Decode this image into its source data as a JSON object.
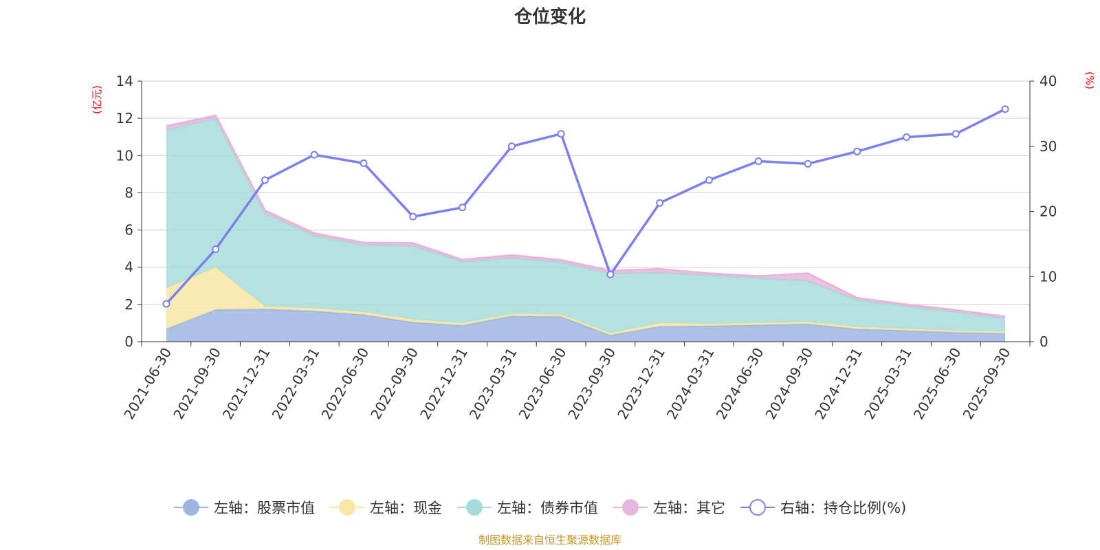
{
  "chart_data": {
    "type": "area",
    "title": "仓位变化",
    "y_left_unit": "(亿元)",
    "y_right_unit": "(%)",
    "x": [
      "2021-06-30",
      "2021-09-30",
      "2021-12-31",
      "2022-03-31",
      "2022-06-30",
      "2022-09-30",
      "2022-12-31",
      "2023-03-31",
      "2023-06-30",
      "2023-09-30",
      "2023-12-31",
      "2024-03-31",
      "2024-06-30",
      "2024-09-30",
      "2024-12-31",
      "2025-03-31",
      "2025-06-30",
      "2025-09-30"
    ],
    "y_left_range": [
      0,
      14
    ],
    "y_left_ticks": [
      "0",
      "2",
      "4",
      "6",
      "8",
      "10",
      "12",
      "14"
    ],
    "y_left_tick_values": [
      0,
      2,
      4,
      6,
      8,
      10,
      12,
      14
    ],
    "y_right_range": [
      0,
      40
    ],
    "y_right_ticks": [
      "0",
      "10",
      "20",
      "30",
      "40"
    ],
    "y_right_tick_values": [
      0,
      10,
      20,
      30,
      40
    ],
    "grid": true,
    "legend_position": "bottom-center",
    "stacked_series": [
      {
        "name": "左轴：股票市值",
        "color": "#9db6e0",
        "values": [
          0.68,
          1.72,
          1.75,
          1.65,
          1.45,
          1.05,
          0.88,
          1.38,
          1.35,
          0.35,
          0.82,
          0.85,
          0.9,
          0.95,
          0.68,
          0.6,
          0.5,
          0.45
        ]
      },
      {
        "name": "左轴：现金",
        "color": "#f8e6a6",
        "values": [
          2.2,
          2.28,
          0.15,
          0.15,
          0.15,
          0.15,
          0.12,
          0.12,
          0.12,
          0.12,
          0.18,
          0.12,
          0.12,
          0.12,
          0.12,
          0.1,
          0.1,
          0.1
        ]
      },
      {
        "name": "左轴：债券市值",
        "color": "#a8dcdc",
        "values": [
          8.5,
          8.0,
          5.0,
          3.9,
          3.6,
          3.95,
          3.3,
          3.0,
          2.8,
          3.2,
          2.7,
          2.6,
          2.4,
          2.2,
          1.45,
          1.2,
          1.0,
          0.7
        ]
      },
      {
        "name": "左轴：其它",
        "color": "#e7b7db",
        "values": [
          0.2,
          0.15,
          0.15,
          0.12,
          0.12,
          0.15,
          0.1,
          0.15,
          0.12,
          0.15,
          0.2,
          0.1,
          0.1,
          0.4,
          0.1,
          0.1,
          0.1,
          0.1
        ]
      }
    ],
    "line_series": {
      "name": "右轴：持仓比例(%)",
      "color": "#7b7ff0",
      "values": [
        5.8,
        14.2,
        24.8,
        28.7,
        27.4,
        19.2,
        20.6,
        30.0,
        31.9,
        10.3,
        21.3,
        24.8,
        27.7,
        27.3,
        29.2,
        31.4,
        31.9,
        35.7
      ]
    },
    "source_note": "制图数据来自恒生聚源数据库"
  }
}
